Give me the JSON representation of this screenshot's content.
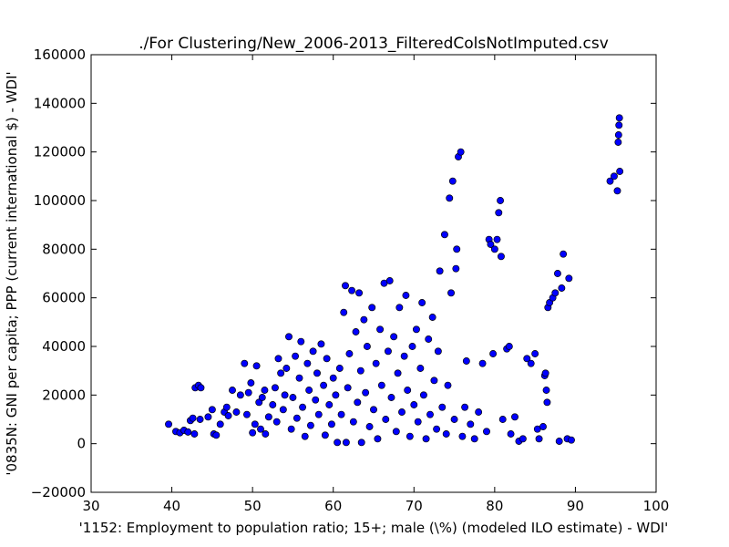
{
  "chart_data": {
    "type": "scatter",
    "title": "./For Clustering/New_2006-2013_FilteredColsNotImputed.csv",
    "xlabel": "'1152: Employment to population ratio; 15+; male (\\%)  (modeled ILO estimate) - WDI'",
    "ylabel": "'0835N: GNI per capita; PPP  (current international $) - WDI'",
    "xlim": [
      30,
      100
    ],
    "ylim": [
      -20000,
      160000
    ],
    "x_ticks": [
      30,
      40,
      50,
      60,
      70,
      80,
      90,
      100
    ],
    "y_ticks": [
      -20000,
      0,
      20000,
      40000,
      60000,
      80000,
      100000,
      120000,
      140000,
      160000
    ],
    "grid": false,
    "marker_color": "#0000ff",
    "series": [
      {
        "points": [
          [
            39.6,
            8000
          ],
          [
            40.5,
            5000
          ],
          [
            41.0,
            4500
          ],
          [
            41.5,
            5500
          ],
          [
            42.0,
            4800
          ],
          [
            42.3,
            9500
          ],
          [
            42.6,
            10500
          ],
          [
            42.8,
            4000
          ],
          [
            42.9,
            23000
          ],
          [
            43.3,
            24000
          ],
          [
            43.6,
            23000
          ],
          [
            43.5,
            10000
          ],
          [
            44.5,
            11000
          ],
          [
            45.2,
            4000
          ],
          [
            45.0,
            14000
          ],
          [
            45.5,
            3500
          ],
          [
            46.0,
            8000
          ],
          [
            46.5,
            13000
          ],
          [
            46.8,
            15000
          ],
          [
            47.0,
            11500
          ],
          [
            47.5,
            22000
          ],
          [
            48.0,
            13000
          ],
          [
            48.5,
            20000
          ],
          [
            49.0,
            33000
          ],
          [
            49.3,
            12000
          ],
          [
            49.5,
            21000
          ],
          [
            49.8,
            25000
          ],
          [
            50.0,
            4500
          ],
          [
            50.3,
            8000
          ],
          [
            50.5,
            32000
          ],
          [
            50.8,
            17000
          ],
          [
            51.0,
            6000
          ],
          [
            51.2,
            19000
          ],
          [
            51.5,
            22000
          ],
          [
            51.6,
            4000
          ],
          [
            52.0,
            11000
          ],
          [
            52.5,
            16000
          ],
          [
            52.8,
            23000
          ],
          [
            53.0,
            9000
          ],
          [
            53.2,
            35000
          ],
          [
            53.5,
            29000
          ],
          [
            53.8,
            14000
          ],
          [
            54.0,
            20000
          ],
          [
            54.2,
            31000
          ],
          [
            54.5,
            44000
          ],
          [
            54.8,
            6000
          ],
          [
            55.0,
            19000
          ],
          [
            55.3,
            36000
          ],
          [
            55.5,
            10500
          ],
          [
            55.8,
            27000
          ],
          [
            56.0,
            42000
          ],
          [
            56.2,
            15000
          ],
          [
            56.5,
            3000
          ],
          [
            56.8,
            33000
          ],
          [
            57.0,
            22000
          ],
          [
            57.2,
            7500
          ],
          [
            57.5,
            38000
          ],
          [
            57.8,
            18000
          ],
          [
            58.0,
            29000
          ],
          [
            58.2,
            12000
          ],
          [
            58.5,
            41000
          ],
          [
            58.8,
            24000
          ],
          [
            59.0,
            3500
          ],
          [
            59.2,
            35000
          ],
          [
            59.5,
            16000
          ],
          [
            59.8,
            8000
          ],
          [
            60.0,
            27000
          ],
          [
            60.3,
            20000
          ],
          [
            60.5,
            500
          ],
          [
            60.8,
            31000
          ],
          [
            61.0,
            12000
          ],
          [
            61.3,
            54000
          ],
          [
            61.5,
            65000
          ],
          [
            61.6,
            500
          ],
          [
            61.8,
            23000
          ],
          [
            62.0,
            37000
          ],
          [
            62.3,
            63000
          ],
          [
            62.5,
            9000
          ],
          [
            62.8,
            46000
          ],
          [
            63.0,
            17000
          ],
          [
            63.2,
            62000
          ],
          [
            63.4,
            30000
          ],
          [
            63.5,
            500
          ],
          [
            63.8,
            51000
          ],
          [
            64.0,
            21000
          ],
          [
            64.2,
            40000
          ],
          [
            64.5,
            7000
          ],
          [
            64.8,
            56000
          ],
          [
            65.0,
            14000
          ],
          [
            65.3,
            33000
          ],
          [
            65.5,
            2000
          ],
          [
            65.8,
            47000
          ],
          [
            66.0,
            24000
          ],
          [
            66.3,
            66000
          ],
          [
            66.5,
            10000
          ],
          [
            66.8,
            38000
          ],
          [
            67.0,
            67000
          ],
          [
            67.2,
            19000
          ],
          [
            67.5,
            44000
          ],
          [
            67.8,
            5000
          ],
          [
            68.0,
            29000
          ],
          [
            68.2,
            56000
          ],
          [
            68.5,
            13000
          ],
          [
            68.8,
            36000
          ],
          [
            69.0,
            61000
          ],
          [
            69.2,
            22000
          ],
          [
            69.5,
            3000
          ],
          [
            69.8,
            40000
          ],
          [
            70.0,
            16000
          ],
          [
            70.3,
            47000
          ],
          [
            70.5,
            9000
          ],
          [
            70.8,
            31000
          ],
          [
            71.0,
            58000
          ],
          [
            71.2,
            20000
          ],
          [
            71.5,
            2000
          ],
          [
            71.8,
            43000
          ],
          [
            72.0,
            12000
          ],
          [
            72.3,
            52000
          ],
          [
            72.5,
            26000
          ],
          [
            72.8,
            6000
          ],
          [
            73.0,
            38000
          ],
          [
            73.2,
            71000
          ],
          [
            73.5,
            15000
          ],
          [
            73.8,
            86000
          ],
          [
            74.0,
            4000
          ],
          [
            74.2,
            24000
          ],
          [
            74.4,
            101000
          ],
          [
            74.6,
            62000
          ],
          [
            74.8,
            108000
          ],
          [
            75.0,
            10000
          ],
          [
            75.2,
            72000
          ],
          [
            75.3,
            80000
          ],
          [
            75.5,
            118000
          ],
          [
            75.8,
            120000
          ],
          [
            76.0,
            3000
          ],
          [
            76.3,
            15000
          ],
          [
            76.5,
            34000
          ],
          [
            77.0,
            8000
          ],
          [
            77.5,
            2000
          ],
          [
            78.0,
            13000
          ],
          [
            78.5,
            33000
          ],
          [
            79.0,
            5000
          ],
          [
            79.3,
            84000
          ],
          [
            79.5,
            82000
          ],
          [
            79.8,
            37000
          ],
          [
            80.0,
            80000
          ],
          [
            80.3,
            84000
          ],
          [
            80.5,
            95000
          ],
          [
            80.7,
            100000
          ],
          [
            80.8,
            77000
          ],
          [
            81.0,
            10000
          ],
          [
            81.5,
            39000
          ],
          [
            81.8,
            40000
          ],
          [
            82.0,
            4000
          ],
          [
            82.5,
            11000
          ],
          [
            83.0,
            1000
          ],
          [
            83.5,
            2000
          ],
          [
            84.0,
            35000
          ],
          [
            84.5,
            33000
          ],
          [
            85.0,
            37000
          ],
          [
            85.3,
            6000
          ],
          [
            85.5,
            2000
          ],
          [
            86.0,
            7000
          ],
          [
            86.2,
            28000
          ],
          [
            86.3,
            29000
          ],
          [
            86.4,
            22000
          ],
          [
            86.5,
            17000
          ],
          [
            86.6,
            56000
          ],
          [
            86.8,
            58000
          ],
          [
            87.2,
            60000
          ],
          [
            87.5,
            62000
          ],
          [
            87.8,
            70000
          ],
          [
            88.0,
            1000
          ],
          [
            88.3,
            64000
          ],
          [
            88.5,
            78000
          ],
          [
            89.0,
            2000
          ],
          [
            89.2,
            68000
          ],
          [
            89.5,
            1500
          ],
          [
            94.3,
            108000
          ],
          [
            94.8,
            110000
          ],
          [
            95.2,
            104000
          ],
          [
            95.3,
            124000
          ],
          [
            95.35,
            127000
          ],
          [
            95.4,
            131000
          ],
          [
            95.45,
            134000
          ],
          [
            95.5,
            112000
          ]
        ]
      }
    ]
  }
}
